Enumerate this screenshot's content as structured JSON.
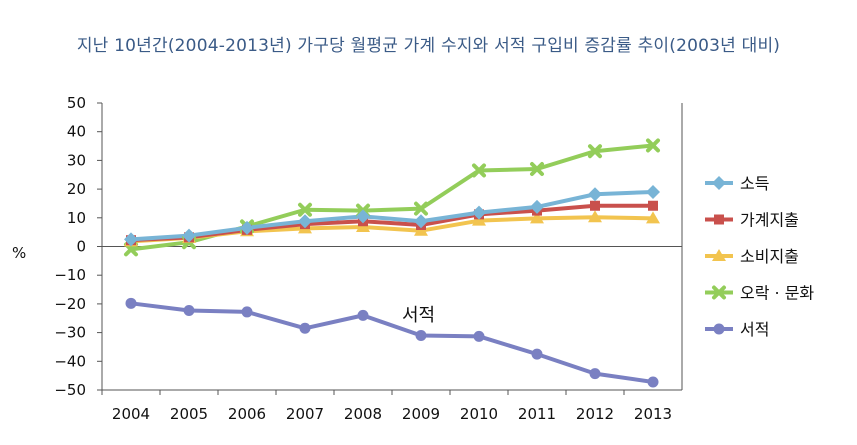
{
  "chart_data": {
    "type": "line",
    "title": "지난 10년간(2004-2013년) 가구당 월평균 가계 수지와 서적 구입비 증감률 추이(2003년 대비)",
    "ylabel": "%",
    "xlabel": "",
    "x": [
      "2004",
      "2005",
      "2006",
      "2007",
      "2008",
      "2009",
      "2010",
      "2011",
      "2012",
      "2013"
    ],
    "ylim": [
      -50,
      50
    ],
    "yticks": [
      50,
      40,
      30,
      20,
      10,
      0,
      -10,
      -20,
      -30,
      -40,
      -50
    ],
    "ytick_labels": [
      "50",
      "40",
      "30",
      "20",
      "10",
      "0",
      "−10",
      "−20",
      "−30",
      "−40",
      "−50"
    ],
    "grid": false,
    "legend_position": "right",
    "series": [
      {
        "name": "소득",
        "color": "#78b4d6",
        "marker": "diamond",
        "values": [
          2.5,
          3.8,
          6.5,
          8.8,
          10.5,
          8.8,
          11.8,
          13.8,
          18.2,
          19.0
        ]
      },
      {
        "name": "가계지출",
        "color": "#c9504c",
        "marker": "square",
        "values": [
          2.2,
          3.2,
          5.8,
          7.8,
          8.8,
          7.5,
          11.2,
          12.5,
          14.2,
          14.2
        ]
      },
      {
        "name": "소비지출",
        "color": "#f2c44f",
        "marker": "triangle",
        "values": [
          1.8,
          3.0,
          5.3,
          6.3,
          6.8,
          5.5,
          9.0,
          9.8,
          10.2,
          9.8
        ]
      },
      {
        "name": "오락 · 문화",
        "color": "#93cd5a",
        "marker": "cross",
        "values": [
          -1.0,
          1.5,
          7.0,
          12.8,
          12.5,
          13.2,
          26.5,
          27.0,
          33.2,
          35.2
        ]
      },
      {
        "name": "서적",
        "color": "#7a80c2",
        "marker": "circle",
        "values": [
          -19.8,
          -22.3,
          -22.8,
          -28.5,
          -24.0,
          -31.0,
          -31.3,
          -37.5,
          -44.3,
          -47.2
        ]
      }
    ],
    "annotations": [
      {
        "text": "서적"
      }
    ]
  }
}
